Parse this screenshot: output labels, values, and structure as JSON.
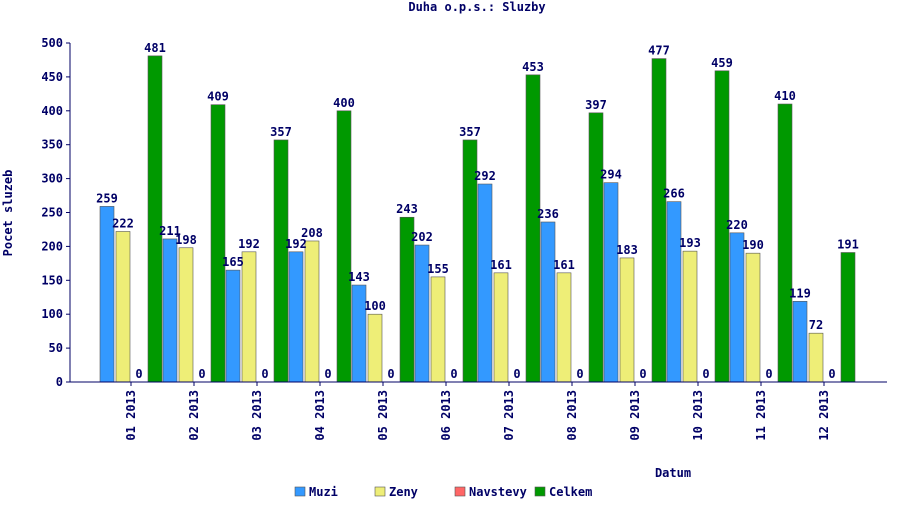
{
  "chart_data": {
    "type": "bar",
    "title": "Duha o.p.s.: Sluzby",
    "xlabel": "Datum",
    "ylabel": "Pocet sluzeb",
    "ylim": [
      0,
      500
    ],
    "yticks": [
      0,
      50,
      100,
      150,
      200,
      250,
      300,
      350,
      400,
      450,
      500
    ],
    "categories": [
      "01 2013",
      "02 2013",
      "03 2013",
      "04 2013",
      "05 2013",
      "06 2013",
      "07 2013",
      "08 2013",
      "09 2013",
      "10 2013",
      "11 2013",
      "12 2013"
    ],
    "series": [
      {
        "name": "Muzi",
        "color": "#3399ff",
        "values": [
          259,
          211,
          165,
          192,
          143,
          202,
          292,
          236,
          294,
          266,
          220,
          119
        ]
      },
      {
        "name": "Zeny",
        "color": "#eeee77",
        "values": [
          222,
          198,
          192,
          208,
          100,
          155,
          161,
          161,
          183,
          193,
          190,
          72
        ]
      },
      {
        "name": "Navstevy",
        "color": "#ff6666",
        "values": [
          0,
          0,
          0,
          0,
          0,
          0,
          0,
          0,
          0,
          0,
          0,
          0
        ]
      },
      {
        "name": "Celkem",
        "color": "#009900",
        "values": [
          481,
          409,
          357,
          400,
          243,
          357,
          453,
          397,
          477,
          459,
          410,
          191
        ]
      }
    ],
    "grid": false,
    "legend_position": "bottom"
  }
}
